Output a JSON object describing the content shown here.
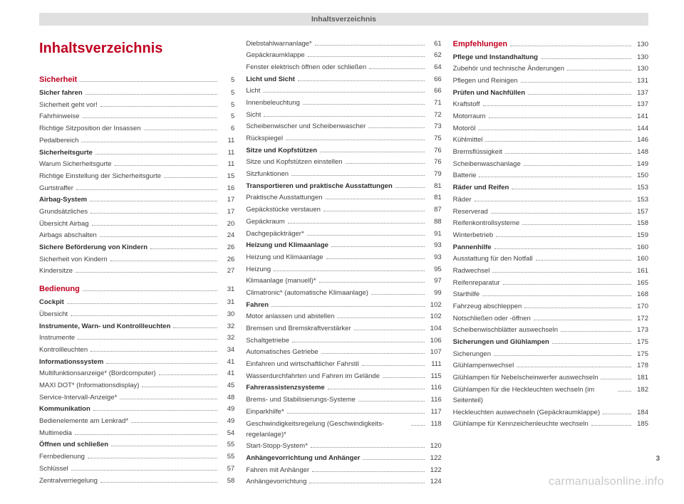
{
  "header": "Inhaltsverzeichnis",
  "main_title": "Inhaltsverzeichnis",
  "page_number": "3",
  "watermark": "carmanualsonline.info",
  "colors": {
    "accent": "#c00020",
    "text": "#404040",
    "header_bg": "#e0e0e0",
    "watermark": "#c8c8c8"
  },
  "columns": [
    {
      "main_title": true,
      "groups": [
        {
          "section": "Sicherheit",
          "items": [
            {
              "label": "Sicher fahren",
              "bold": true,
              "page": "5"
            },
            {
              "label": "Sicherheit geht vor!",
              "page": "5"
            },
            {
              "label": "Fahrhinweise",
              "page": "5"
            },
            {
              "label": "Richtige Sitzposition der Insassen",
              "page": "6"
            },
            {
              "label": "Pedalbereich",
              "page": "11"
            },
            {
              "label": "Sicherheitsgurte",
              "bold": true,
              "page": "11"
            },
            {
              "label": "Warum Sicherheitsgurte",
              "page": "11"
            },
            {
              "label": "Richtige Einstellung der Sicherheitsgurte",
              "page": "15"
            },
            {
              "label": "Gurtstraffer",
              "page": "16"
            },
            {
              "label": "Airbag-System",
              "bold": true,
              "page": "17"
            },
            {
              "label": "Grundsätzliches",
              "page": "17"
            },
            {
              "label": "Übersicht Airbag",
              "page": "20"
            },
            {
              "label": "Airbags abschalten",
              "page": "24"
            },
            {
              "label": "Sichere Beförderung von Kindern",
              "bold": true,
              "page": "26"
            },
            {
              "label": "Sicherheit von Kindern",
              "page": "26"
            },
            {
              "label": "Kindersitze",
              "page": "27"
            }
          ]
        },
        {
          "section": "Bedienung",
          "items": [
            {
              "label": "Cockpit",
              "bold": true,
              "page": "31"
            },
            {
              "label": "Übersicht",
              "page": "30"
            },
            {
              "label": "Instrumente, Warn- und Kontrollleuchten",
              "bold": true,
              "page": "32"
            },
            {
              "label": "Instrumente",
              "page": "32"
            },
            {
              "label": "Kontrollleuchten",
              "page": "34"
            },
            {
              "label": "Informationssystem",
              "bold": true,
              "page": "41"
            },
            {
              "label": "Multifunktionsanzeige* (Bordcomputer)",
              "page": "41"
            },
            {
              "label": "MAXI DOT* (Informationsdisplay)",
              "page": "45"
            },
            {
              "label": "Service-Intervall-Anzeige*",
              "page": "48"
            },
            {
              "label": "Kommunikation",
              "bold": true,
              "page": "49"
            },
            {
              "label": "Bedienelemente am Lenkrad*",
              "page": "49"
            },
            {
              "label": "Multimedia",
              "page": "54"
            },
            {
              "label": "Öffnen und schließen",
              "bold": true,
              "page": "55"
            },
            {
              "label": "Fernbedienung",
              "page": "55"
            },
            {
              "label": "Schlüssel",
              "page": "57"
            },
            {
              "label": "Zentralverriegelung",
              "page": "58"
            }
          ]
        }
      ]
    },
    {
      "groups": [
        {
          "items": [
            {
              "label": "Diebstahlwarnanlage*",
              "page": "61"
            },
            {
              "label": "Gepäckraumklappe",
              "page": "62"
            },
            {
              "label": "Fenster elektrisch öffnen oder schließen",
              "page": "64"
            },
            {
              "label": "Licht und Sicht",
              "bold": true,
              "page": "66"
            },
            {
              "label": "Licht",
              "page": "66"
            },
            {
              "label": "Innenbeleuchtung",
              "page": "71"
            },
            {
              "label": "Sicht",
              "page": "72"
            },
            {
              "label": "Scheibenwischer und Scheibenwascher",
              "page": "73"
            },
            {
              "label": "Rückspiegel",
              "page": "75"
            },
            {
              "label": "Sitze und Kopfstützen",
              "bold": true,
              "page": "76"
            },
            {
              "label": "Sitze und Kopfstützen einstellen",
              "page": "76"
            },
            {
              "label": "Sitzfunktionen",
              "page": "79"
            },
            {
              "label": "Transportieren und praktische Ausstattungen",
              "bold": true,
              "page": "81"
            },
            {
              "label": "Praktische Ausstattungen",
              "page": "81"
            },
            {
              "label": "Gepäckstücke verstauen",
              "page": "87"
            },
            {
              "label": "Gepäckraum",
              "page": "88"
            },
            {
              "label": "Dachgepäckträger*",
              "page": "91"
            },
            {
              "label": "Heizung und Klimaanlage",
              "bold": true,
              "page": "93"
            },
            {
              "label": "Heizung und Klimaanlage",
              "page": "93"
            },
            {
              "label": "Heizung",
              "page": "95"
            },
            {
              "label": "Klimaanlage (manuell)*",
              "page": "97"
            },
            {
              "label": "Climatronic* (automatische Klimaanlage)",
              "page": "99"
            },
            {
              "label": "Fahren",
              "bold": true,
              "page": "102"
            },
            {
              "label": "Motor anlassen und abstellen",
              "page": "102"
            },
            {
              "label": "Bremsen und Bremskraftverstärker",
              "page": "104"
            },
            {
              "label": "Schaltgetriebe",
              "page": "106"
            },
            {
              "label": "Automatisches Getriebe",
              "page": "107"
            },
            {
              "label": "Einfahren und wirtschaftlicher Fahrstil",
              "page": "111"
            },
            {
              "label": "Wasserdurchfahrten und Fahren im Gelände",
              "page": "115"
            },
            {
              "label": "Fahrerassistenzsysteme",
              "bold": true,
              "page": "116"
            },
            {
              "label": "Brems- und Stabilisierungs-Systeme",
              "page": "116"
            },
            {
              "label": "Einparkhilfe*",
              "page": "117"
            },
            {
              "label": "Geschwindigkeitsregelung (Geschwindigkeits-regelanlage)*",
              "page": "118",
              "wrap": true
            },
            {
              "label": "Start-Stopp-System*",
              "page": "120"
            },
            {
              "label": "Anhängevorrichtung und Anhänger",
              "bold": true,
              "page": "122"
            },
            {
              "label": "Fahren mit Anhänger",
              "page": "122"
            },
            {
              "label": "Anhängevorrichtung",
              "page": "124"
            }
          ]
        }
      ]
    },
    {
      "groups": [
        {
          "section": "Empfehlungen",
          "inline_section": true,
          "items": [
            {
              "label": "Pflege und Instandhaltung",
              "bold": true,
              "page": "130"
            },
            {
              "label": "Zubehör und technische Änderungen",
              "page": "130"
            },
            {
              "label": "Pflegen und Reinigen",
              "page": "131"
            },
            {
              "label": "Prüfen und Nachfüllen",
              "bold": true,
              "page": "137"
            },
            {
              "label": "Kraftstoff",
              "page": "137"
            },
            {
              "label": "Motorraum",
              "page": "141"
            },
            {
              "label": "Motoröl",
              "page": "144"
            },
            {
              "label": "Kühlmittel",
              "page": "146"
            },
            {
              "label": "Bremsflüssigkeit",
              "page": "148"
            },
            {
              "label": "Scheibenwaschanlage",
              "page": "149"
            },
            {
              "label": "Batterie",
              "page": "150"
            },
            {
              "label": "Räder und Reifen",
              "bold": true,
              "page": "153"
            },
            {
              "label": "Räder",
              "page": "153"
            },
            {
              "label": "Reserverad",
              "page": "157"
            },
            {
              "label": "Reifenkontrollsysteme",
              "page": "158"
            },
            {
              "label": "Winterbetrieb",
              "page": "159"
            },
            {
              "label": "Pannenhilfe",
              "bold": true,
              "page": "160"
            },
            {
              "label": "Ausstattung für den Notfall",
              "page": "160"
            },
            {
              "label": "Radwechsel",
              "page": "161"
            },
            {
              "label": "Reifenreparatur",
              "page": "165"
            },
            {
              "label": "Starthilfe",
              "page": "168"
            },
            {
              "label": "Fahrzeug abschleppen",
              "page": "170"
            },
            {
              "label": "Notschließen oder -öffnen",
              "page": "172"
            },
            {
              "label": "Scheibenwischblätter auswechseln",
              "page": "173"
            },
            {
              "label": "Sicherungen und Glühlampen",
              "bold": true,
              "page": "175"
            },
            {
              "label": "Sicherungen",
              "page": "175"
            },
            {
              "label": "Glühlampenwechsel",
              "page": "178"
            },
            {
              "label": "Glühlampen für Nebelscheinwerfer auswechseln",
              "page": "181",
              "wrap": true
            },
            {
              "label": "Glühlampen für die Heckleuchten wechseln (im Seitenteil)",
              "page": "182",
              "wrap": true
            },
            {
              "label": "Heckleuchten auswechseln (Gepäckraumklappe)",
              "page": "184",
              "wrap": true
            },
            {
              "label": "Glühlampe für Kennzeichenleuchte wechseln",
              "page": "185"
            }
          ],
          "section_page": "130"
        }
      ]
    }
  ]
}
